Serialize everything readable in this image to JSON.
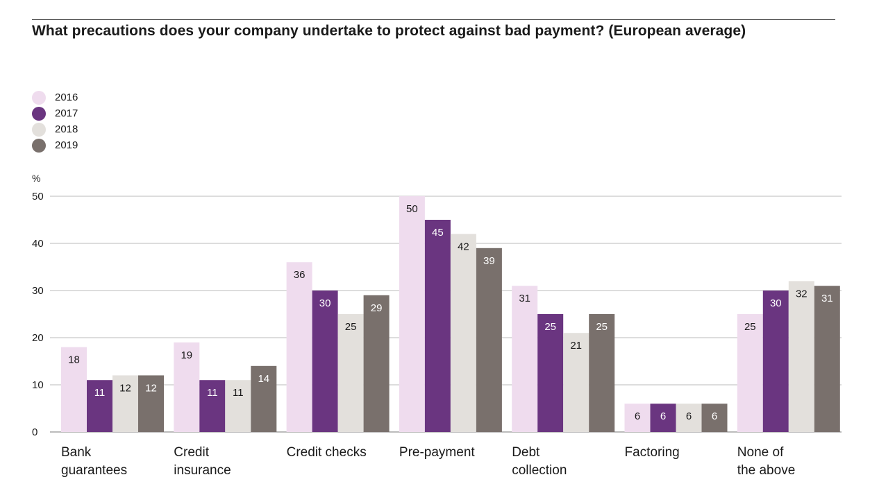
{
  "title": "What precautions does your company undertake to protect against bad payment? (European average)",
  "colors": {
    "2016": "#efdcee",
    "2017": "#6a3580",
    "2018": "#e3e0dc",
    "2019": "#79706c",
    "gridline": "#bbbbbb",
    "text": "#1a1a1a"
  },
  "chart_data": {
    "type": "bar",
    "ylabel": "%",
    "ylim": [
      0,
      50
    ],
    "yticks": [
      0,
      10,
      20,
      30,
      40,
      50
    ],
    "categories": [
      [
        "Bank",
        "guarantees"
      ],
      [
        "Credit",
        "insurance"
      ],
      [
        "Credit checks"
      ],
      [
        "Pre-payment"
      ],
      [
        "Debt",
        "collection"
      ],
      [
        "Factoring"
      ],
      [
        "None of",
        "the above"
      ]
    ],
    "series": [
      {
        "name": "2016",
        "values": [
          18,
          19,
          36,
          50,
          31,
          6,
          25
        ]
      },
      {
        "name": "2017",
        "values": [
          11,
          11,
          30,
          45,
          25,
          6,
          30
        ]
      },
      {
        "name": "2018",
        "values": [
          12,
          11,
          25,
          42,
          21,
          6,
          32
        ]
      },
      {
        "name": "2019",
        "values": [
          12,
          14,
          29,
          39,
          25,
          6,
          31
        ]
      }
    ],
    "legend_position": "top-left",
    "grid": true
  }
}
